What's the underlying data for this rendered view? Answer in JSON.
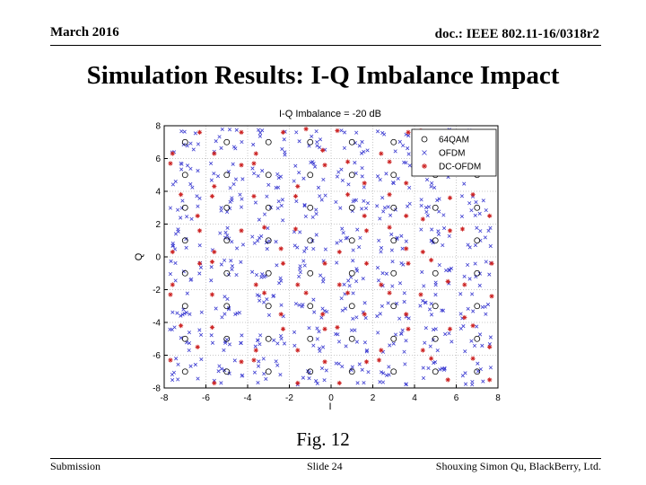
{
  "header": {
    "date": "March 2016",
    "doc": "doc.: IEEE 802.11-16/0318r2"
  },
  "slide_title": "Simulation Results: I-Q Imbalance Impact",
  "caption": "Fig. 12",
  "footer": {
    "left": "Submission",
    "center": "Slide 24",
    "right": "Shouxing Simon Qu, BlackBerry, Ltd."
  },
  "colors": {
    "qam64": "#000000",
    "ofdm": "#3b3bd1",
    "dc_ofdm": "#cc2222",
    "grid": "#c8c8c8"
  },
  "chart_data": {
    "type": "scatter",
    "title": "I-Q Imbalance = -20 dB",
    "xlabel": "I",
    "ylabel": "Q",
    "xlim": [
      -8,
      8
    ],
    "ylim": [
      -8,
      8
    ],
    "xticks": [
      -8,
      -6,
      -4,
      -2,
      0,
      2,
      4,
      6,
      8
    ],
    "xtick_labels": [
      "-8",
      "-6",
      "-4",
      "-2",
      "0",
      "2",
      "4",
      "6",
      "8"
    ],
    "yticks": [
      -8,
      -6,
      -4,
      -2,
      0,
      2,
      4,
      6,
      8
    ],
    "ytick_labels": [
      "-8",
      "-6",
      "-4",
      "-2",
      "0",
      "2",
      "4",
      "6",
      "8"
    ],
    "grid": true,
    "legend_position": "top-right",
    "constellation": {
      "i_levels": [
        -7,
        -5,
        -3,
        -1,
        1,
        3,
        5,
        7
      ],
      "q_levels": [
        -7,
        -5,
        -3,
        -1,
        1,
        3,
        5,
        7
      ]
    },
    "series": [
      {
        "name": "64QAM",
        "marker": "circle",
        "color": "#000000"
      },
      {
        "name": "OFDM",
        "marker": "x",
        "color": "#3b3bd1"
      },
      {
        "name": "DC-OFDM",
        "marker": "star",
        "color": "#cc2222"
      }
    ]
  }
}
